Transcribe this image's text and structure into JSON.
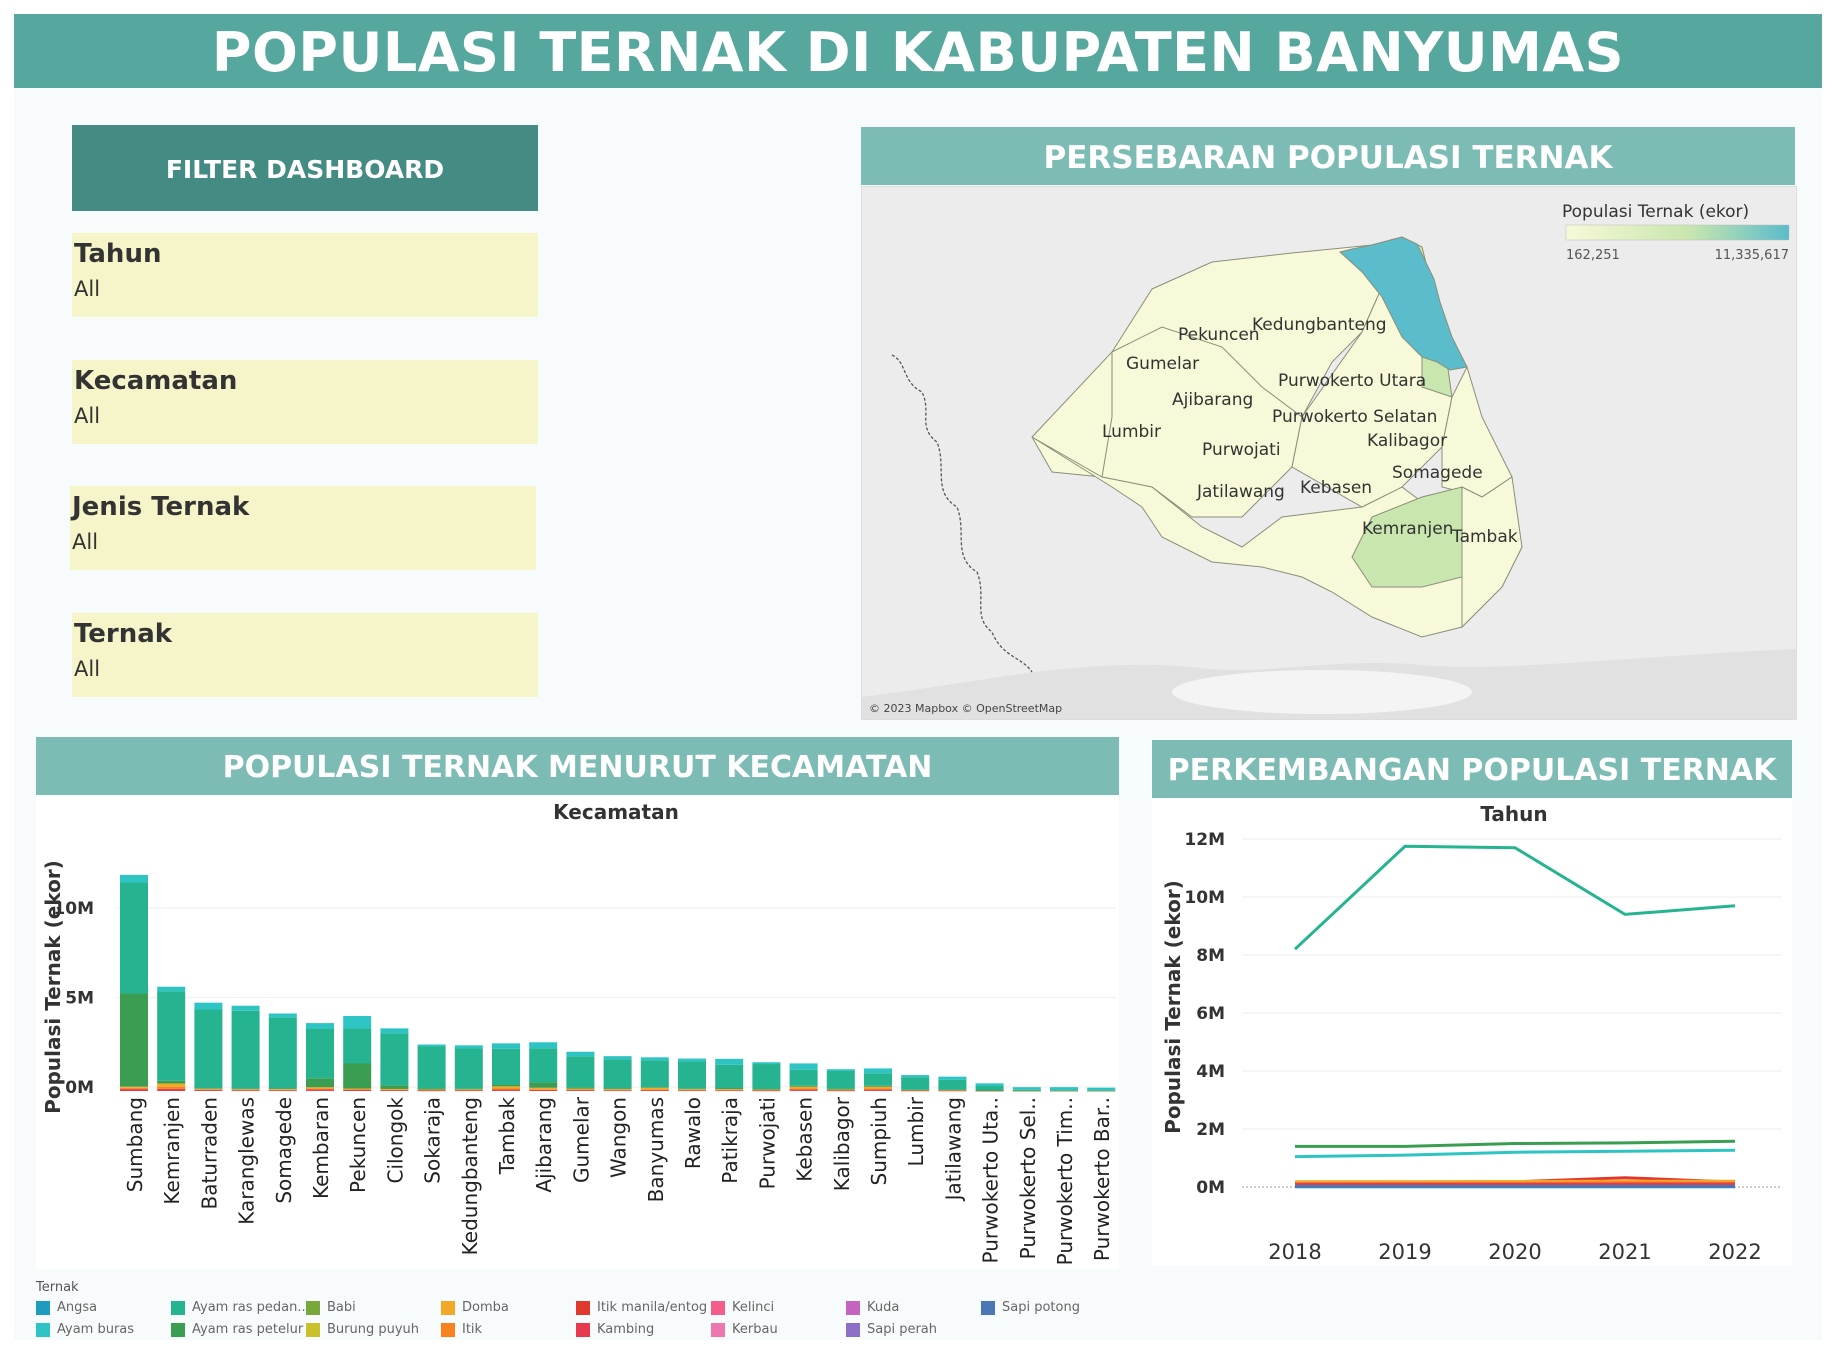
{
  "title": "POPULASI TERNAK DI KABUPATEN BANYUMAS",
  "filter": {
    "header": "FILTER DASHBOARD",
    "items": [
      {
        "label": "Tahun",
        "value": "All"
      },
      {
        "label": "Kecamatan",
        "value": "All"
      },
      {
        "label": "Jenis Ternak",
        "value": "All"
      },
      {
        "label": "Ternak",
        "value": "All"
      }
    ]
  },
  "map": {
    "header": "PERSEBARAN POPULASI TERNAK",
    "legend_title": "Populasi Ternak (ekor)",
    "legend_min": "162,251",
    "legend_max": "11,335,617",
    "colors": {
      "low": "#f7f9d8",
      "mid": "#c9e6ae",
      "high": "#5bbccb"
    },
    "attribution": "© 2023 Mapbox © OpenStreetMap",
    "labels": [
      "Pekuncen",
      "Kedungbanteng",
      "Gumelar",
      "Purwokerto Utara",
      "Ajibarang",
      "Purwokerto Selatan",
      "Lumbir",
      "Kalibagor",
      "Purwojati",
      "Somagede",
      "Jatilawang",
      "Kebasen",
      "Kemranjen",
      "Tambak"
    ]
  },
  "bar_panel": {
    "header": "POPULASI TERNAK MENURUT KECAMATAN",
    "chart_title": "Kecamatan",
    "y_label": "Populasi Ternak (ekor)",
    "y_ticks": [
      "10M",
      "5M",
      "0M"
    ]
  },
  "line_panel": {
    "header": "PERKEMBANGAN POPULASI TERNAK",
    "chart_title": "Tahun",
    "y_label": "Populasi Ternak (ekor)",
    "y_ticks": [
      "12M",
      "10M",
      "8M",
      "6M",
      "4M",
      "2M",
      "0M"
    ],
    "x_ticks": [
      "2018",
      "2019",
      "2020",
      "2021",
      "2022"
    ]
  },
  "legend": {
    "title": "Ternak",
    "items": [
      {
        "name": "Angsa",
        "color": "#1f9bbf"
      },
      {
        "name": "Ayam buras",
        "color": "#2ec4c4"
      },
      {
        "name": "Ayam ras pedan..",
        "color": "#25b48f"
      },
      {
        "name": "Ayam ras petelur",
        "color": "#3a9d52"
      },
      {
        "name": "Babi",
        "color": "#77a83a"
      },
      {
        "name": "Burung puyuh",
        "color": "#c9c02a"
      },
      {
        "name": "Domba",
        "color": "#f2a925"
      },
      {
        "name": "Itik",
        "color": "#f7821e"
      },
      {
        "name": "Itik manila/entog",
        "color": "#e0382c"
      },
      {
        "name": "Kambing",
        "color": "#e8394f"
      },
      {
        "name": "Kelinci",
        "color": "#f25d8a"
      },
      {
        "name": "Kerbau",
        "color": "#ee77b0"
      },
      {
        "name": "Kuda",
        "color": "#c464c0"
      },
      {
        "name": "Sapi perah",
        "color": "#8e6fc7"
      },
      {
        "name": "Sapi potong",
        "color": "#4a78b7"
      }
    ]
  },
  "chart_data": [
    {
      "type": "bar",
      "title": "Kecamatan",
      "ylabel": "Populasi Ternak (ekor)",
      "ylim": [
        0,
        12000000
      ],
      "categories": [
        "Sumbang",
        "Kemranjen",
        "Baturraden",
        "Karanglewas",
        "Somagede",
        "Kembaran",
        "Pekuncen",
        "Cilongok",
        "Sokaraja",
        "Kedungbanteng",
        "Tambak",
        "Ajibarang",
        "Gumelar",
        "Wangon",
        "Banyumas",
        "Rawalo",
        "Patikraja",
        "Purwojati",
        "Kebasen",
        "Kalibagor",
        "Sumpiuh",
        "Lumbir",
        "Jatilawang",
        "Purwokerto Uta..",
        "Purwokerto Sel..",
        "Purwokerto Tim..",
        "Purwokerto Bar.."
      ],
      "series": [
        {
          "name": "Ayam ras petelur",
          "values": [
            5200000,
            150000,
            30000,
            20000,
            40000,
            500000,
            1400000,
            200000,
            50000,
            20000,
            100000,
            300000,
            60000,
            20000,
            40000,
            30000,
            60000,
            20000,
            50000,
            20000,
            50000,
            10000,
            5000,
            2000,
            1000,
            1000,
            1000
          ]
        },
        {
          "name": "Ayam ras pedan..",
          "values": [
            6200000,
            5000000,
            4400000,
            4350000,
            3950000,
            2750000,
            1950000,
            2900000,
            2350000,
            2250000,
            2000000,
            1900000,
            1750000,
            1630000,
            1500000,
            1520000,
            1300000,
            1400000,
            900000,
            1000000,
            700000,
            700000,
            550000,
            250000,
            50000,
            30000,
            20000
          ]
        },
        {
          "name": "Ayam buras",
          "values": [
            420000,
            250000,
            380000,
            280000,
            230000,
            330000,
            700000,
            280000,
            110000,
            180000,
            300000,
            340000,
            250000,
            180000,
            160000,
            160000,
            330000,
            100000,
            350000,
            100000,
            270000,
            120000,
            180000,
            150000,
            150000,
            170000,
            150000
          ]
        },
        {
          "name": "Domba",
          "values": [
            60000,
            180000,
            40000,
            40000,
            40000,
            60000,
            50000,
            40000,
            30000,
            40000,
            120000,
            80000,
            50000,
            50000,
            100000,
            40000,
            40000,
            30000,
            90000,
            40000,
            90000,
            20000,
            30000,
            10000,
            5000,
            5000,
            5000
          ]
        },
        {
          "name": "Itik",
          "values": [
            60000,
            120000,
            30000,
            25000,
            20000,
            60000,
            25000,
            25000,
            20000,
            20000,
            60000,
            40000,
            30000,
            25000,
            30000,
            20000,
            25000,
            20000,
            70000,
            20000,
            70000,
            15000,
            10000,
            5000,
            3000,
            3000,
            3000
          ]
        },
        {
          "name": "Itik manila/entog",
          "values": [
            50000,
            40000,
            20000,
            20000,
            20000,
            40000,
            20000,
            20000,
            15000,
            15000,
            30000,
            20000,
            20000,
            15000,
            20000,
            15000,
            15000,
            15000,
            40000,
            15000,
            40000,
            10000,
            10000,
            5000,
            3000,
            3000,
            3000
          ]
        },
        {
          "name": "Kambing",
          "values": [
            70000,
            80000,
            30000,
            25000,
            25000,
            50000,
            40000,
            30000,
            20000,
            25000,
            50000,
            40000,
            30000,
            25000,
            30000,
            25000,
            25000,
            20000,
            40000,
            20000,
            40000,
            15000,
            15000,
            5000,
            3000,
            3000,
            3000
          ]
        }
      ]
    },
    {
      "type": "line",
      "title": "Tahun",
      "ylabel": "Populasi Ternak (ekor)",
      "ylim": [
        0,
        12000000
      ],
      "x": [
        "2018",
        "2019",
        "2020",
        "2021",
        "2022"
      ],
      "series": [
        {
          "name": "Ayam ras pedan..",
          "values": [
            8200000,
            11750000,
            11700000,
            9400000,
            9700000
          ]
        },
        {
          "name": "Ayam ras petelur",
          "values": [
            1400000,
            1400000,
            1500000,
            1520000,
            1580000
          ]
        },
        {
          "name": "Ayam buras",
          "values": [
            1050000,
            1100000,
            1200000,
            1230000,
            1270000
          ]
        },
        {
          "name": "Itik manila/entog",
          "values": [
            150000,
            170000,
            180000,
            320000,
            170000
          ]
        },
        {
          "name": "Domba",
          "values": [
            180000,
            180000,
            190000,
            200000,
            200000
          ]
        },
        {
          "name": "Itik",
          "values": [
            110000,
            120000,
            120000,
            140000,
            130000
          ]
        },
        {
          "name": "Kambing",
          "values": [
            90000,
            90000,
            95000,
            100000,
            100000
          ]
        },
        {
          "name": "Angsa",
          "values": [
            10000,
            10000,
            10000,
            10000,
            10000
          ]
        },
        {
          "name": "Sapi potong",
          "values": [
            20000,
            20000,
            20000,
            20000,
            20000
          ]
        }
      ]
    }
  ]
}
